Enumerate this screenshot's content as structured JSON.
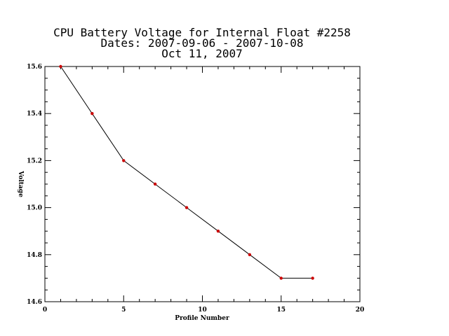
{
  "chart_data": {
    "type": "line",
    "title_lines": [
      "CPU Battery Voltage for Internal Float #2258",
      "Dates:  2007-09-06 -  2007-10-08",
      "Oct 11, 2007"
    ],
    "xlabel": "Profile Number",
    "ylabel": "Voltage",
    "xlim": [
      0,
      20
    ],
    "ylim": [
      14.6,
      15.6
    ],
    "x_ticks": [
      "0",
      "5",
      "10",
      "15",
      "20"
    ],
    "y_ticks": [
      "14.6",
      "14.8",
      "15.0",
      "15.2",
      "15.4",
      "15.6"
    ],
    "grid": false,
    "series": [
      {
        "x": [
          1,
          3,
          5,
          7,
          9,
          11,
          13,
          15,
          17
        ],
        "values": [
          15.6,
          15.4,
          15.2,
          15.1,
          15.0,
          14.9,
          14.8,
          14.7,
          14.7
        ],
        "line_color": "#000000",
        "marker_color": "#cc0000"
      }
    ]
  }
}
